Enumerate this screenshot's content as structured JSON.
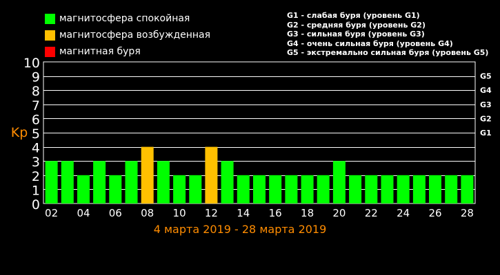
{
  "legend": {
    "items": [
      {
        "label": "магнитосфера спокойная",
        "color": "#00ff00"
      },
      {
        "label": "магнитосфера возбужденная",
        "color": "#ffc000"
      },
      {
        "label": "магнитная буря",
        "color": "#ff0000"
      }
    ]
  },
  "storm_levels": [
    "G1 - слабая буря (уровень G1)",
    "G2 - средняя буря (уровень G2)",
    "G3 - сильная буря (уровень G3)",
    "G4 - очень сильная буря (уровень G4)",
    "G5 - экстремально сильная буря (уровень G5)"
  ],
  "colors": {
    "calm": "#00ff00",
    "disturbed": "#ffc000",
    "storm": "#ff0000",
    "axis_text": "#ff8c00",
    "background": "#000000",
    "grid": "#ffffff"
  },
  "chart_data": {
    "type": "bar",
    "title": "",
    "xlabel": "4 марта 2019 - 28 марта 2019",
    "ylabel": "Kp",
    "ylim": [
      0,
      10
    ],
    "yticks": [
      0,
      1,
      2,
      3,
      4,
      5,
      6,
      7,
      8,
      9,
      10
    ],
    "right_axis_labels": [
      {
        "label": "G1",
        "value": 5
      },
      {
        "label": "G2",
        "value": 6
      },
      {
        "label": "G3",
        "value": 7
      },
      {
        "label": "G4",
        "value": 8
      },
      {
        "label": "G5",
        "value": 9
      }
    ],
    "xtick_labels": [
      "02",
      "04",
      "06",
      "08",
      "10",
      "12",
      "14",
      "16",
      "18",
      "20",
      "22",
      "24",
      "26",
      "28"
    ],
    "grid": true,
    "bar_count": 27,
    "values": [
      3,
      3,
      2,
      3,
      2,
      3,
      4,
      3,
      2,
      2,
      4,
      3,
      2,
      2,
      2,
      2,
      2,
      2,
      3,
      2,
      2,
      2,
      2,
      2,
      2,
      2,
      2
    ],
    "colors": [
      "calm",
      "calm",
      "calm",
      "calm",
      "calm",
      "calm",
      "disturbed",
      "calm",
      "calm",
      "calm",
      "disturbed",
      "calm",
      "calm",
      "calm",
      "calm",
      "calm",
      "calm",
      "calm",
      "calm",
      "calm",
      "calm",
      "calm",
      "calm",
      "calm",
      "calm",
      "calm",
      "calm"
    ]
  }
}
